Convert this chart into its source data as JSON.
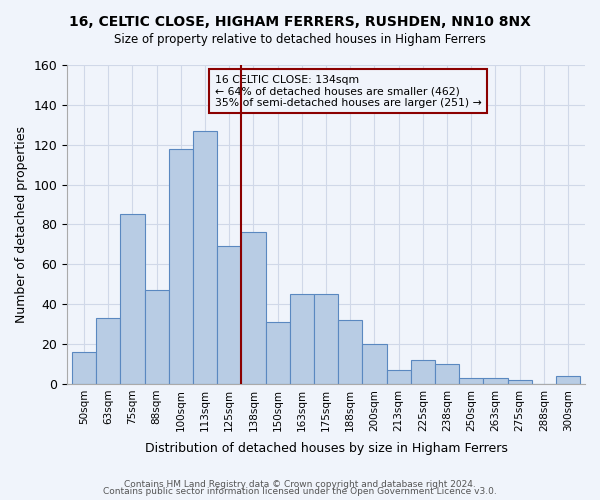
{
  "title": "16, CELTIC CLOSE, HIGHAM FERRERS, RUSHDEN, NN10 8NX",
  "subtitle": "Size of property relative to detached houses in Higham Ferrers",
  "xlabel": "Distribution of detached houses by size in Higham Ferrers",
  "ylabel": "Number of detached properties",
  "bar_labels": [
    "50sqm",
    "63sqm",
    "75sqm",
    "88sqm",
    "100sqm",
    "113sqm",
    "125sqm",
    "138sqm",
    "150sqm",
    "163sqm",
    "175sqm",
    "188sqm",
    "200sqm",
    "213sqm",
    "225sqm",
    "238sqm",
    "250sqm",
    "263sqm",
    "275sqm",
    "288sqm",
    "300sqm"
  ],
  "bar_values": [
    16,
    33,
    85,
    47,
    118,
    127,
    69,
    76,
    31,
    45,
    45,
    32,
    20,
    7,
    12,
    10,
    3,
    3,
    2,
    0,
    4
  ],
  "bar_color": "#b8cce4",
  "bar_edge_color": "#5a88c0",
  "vline_color": "#8b0000",
  "annotation_box_text": "16 CELTIC CLOSE: 134sqm\n← 64% of detached houses are smaller (462)\n35% of semi-detached houses are larger (251) →",
  "annotation_box_color": "#8b0000",
  "ylim": [
    0,
    160
  ],
  "yticks": [
    0,
    20,
    40,
    60,
    80,
    100,
    120,
    140,
    160
  ],
  "grid_color": "#d0d8e8",
  "bg_color": "#f0f4fb",
  "footer1": "Contains HM Land Registry data © Crown copyright and database right 2024.",
  "footer2": "Contains public sector information licensed under the Open Government Licence v3.0."
}
